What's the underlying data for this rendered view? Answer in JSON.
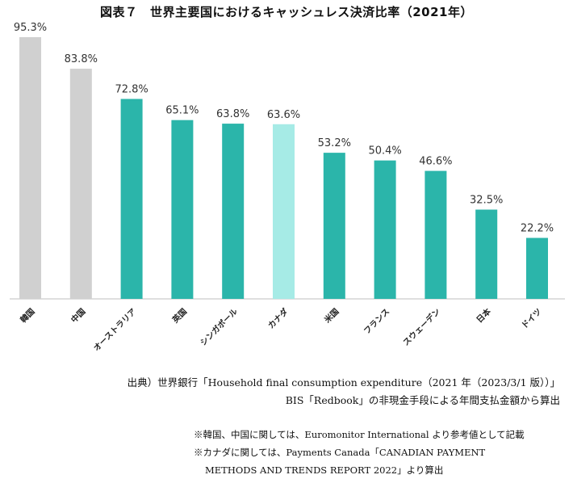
{
  "chart_data": {
    "type": "bar",
    "title": "図表７　世界主要国におけるキャッシュレス決済比率（2021年）",
    "categories": [
      "韓国",
      "中国",
      "オーストラリア",
      "英国",
      "シンガポール",
      "カナダ",
      "米国",
      "フランス",
      "スウェーデン",
      "日本",
      "ドイツ"
    ],
    "values": [
      95.3,
      83.8,
      72.8,
      65.1,
      63.8,
      63.6,
      53.2,
      50.4,
      46.6,
      32.5,
      22.2
    ],
    "value_labels": [
      "95.3%",
      "83.8%",
      "72.8%",
      "65.1%",
      "63.8%",
      "63.6%",
      "53.2%",
      "50.4%",
      "46.6%",
      "32.5%",
      "22.2%"
    ],
    "bar_colors": [
      "#d0d0d0",
      "#d0d0d0",
      "#2bb5aa",
      "#2bb5aa",
      "#2bb5aa",
      "#a6ebe6",
      "#2bb5aa",
      "#2bb5aa",
      "#2bb5aa",
      "#2bb5aa",
      "#2bb5aa"
    ],
    "ylim": [
      0,
      100
    ],
    "grid": false,
    "legend": "none"
  },
  "source": {
    "line1": "出典）世界銀行「Household final consumption expenditure（2021 年（2023/3/1 版））」",
    "line2": "BIS「Redbook」の非現金手段による年間支払金額から算出"
  },
  "notes": {
    "note1": "※韓国、中国に関しては、Euromonitor International より参考値として記載",
    "note2": "※カナダに関しては、Payments Canada「CANADIAN PAYMENT",
    "note3": "METHODS AND TRENDS REPORT 2022」より算出"
  }
}
